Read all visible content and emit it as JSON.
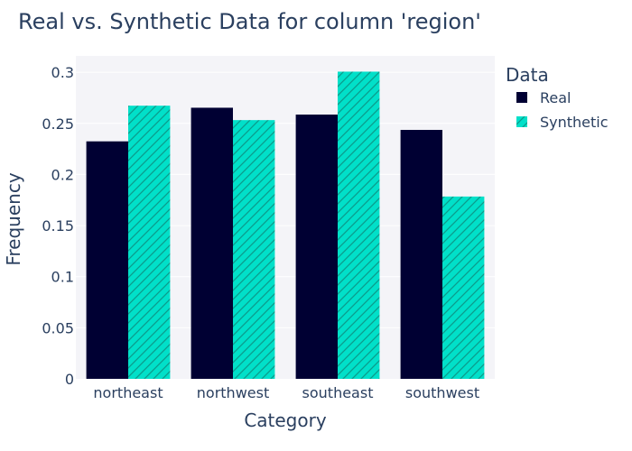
{
  "chart_data": {
    "type": "bar",
    "title": "Real vs. Synthetic Data for column 'region'",
    "xlabel": "Category",
    "ylabel": "Frequency",
    "categories": [
      "northeast",
      "northwest",
      "southeast",
      "southwest"
    ],
    "series": [
      {
        "name": "Real",
        "values": [
          0.2324,
          0.2653,
          0.2586,
          0.2436
        ],
        "color": "#000033",
        "pattern": "solid"
      },
      {
        "name": "Synthetic",
        "values": [
          0.2673,
          0.2532,
          0.3006,
          0.1784
        ],
        "color": "#01e0c9",
        "pattern": "diagonal-hatch"
      }
    ],
    "ylim": [
      0,
      0.316
    ],
    "yticks": [
      0,
      0.05,
      0.1,
      0.15,
      0.2,
      0.25,
      0.3
    ],
    "ytick_labels": [
      "0",
      "0.05",
      "0.1",
      "0.15",
      "0.2",
      "0.25",
      "0.3"
    ],
    "grid": true,
    "plot_background": "#f4f4f8",
    "legend": {
      "title": "Data",
      "placement": "top-right"
    }
  }
}
